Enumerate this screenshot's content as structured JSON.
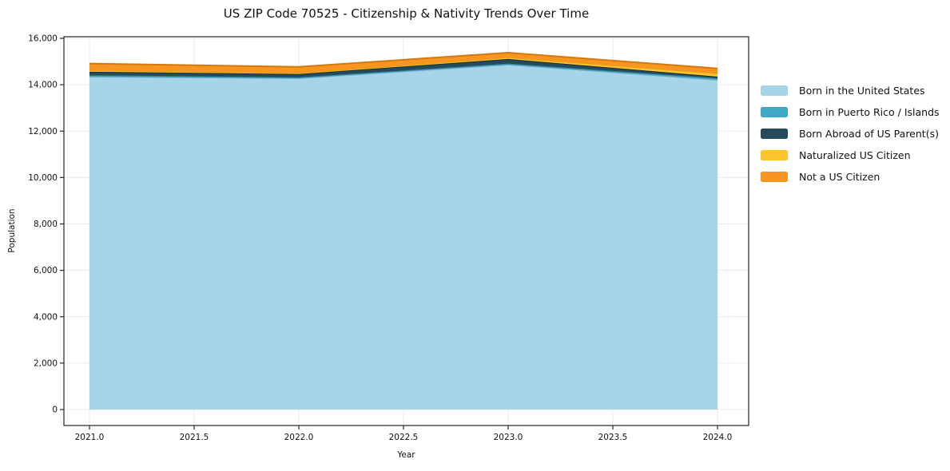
{
  "chart_data": {
    "type": "area",
    "stacked": true,
    "title": "US ZIP Code 70525 - Citizenship & Nativity Trends Over Time",
    "xlabel": "Year",
    "ylabel": "Population",
    "x": [
      2021,
      2022,
      2023,
      2024
    ],
    "series": [
      {
        "name": "Born in the United States",
        "color": "#A6D4E8",
        "edge": "#74AFCC",
        "values": [
          14350,
          14280,
          14870,
          14210
        ]
      },
      {
        "name": "Born in Puerto Rico / Islands",
        "color": "#3FA8C4",
        "edge": "#2C87A0",
        "values": [
          60,
          40,
          40,
          70
        ]
      },
      {
        "name": "Born Abroad of US Parent(s)",
        "color": "#27495C",
        "edge": "#16303F",
        "values": [
          150,
          140,
          200,
          70
        ]
      },
      {
        "name": "Naturalized US Citizen",
        "color": "#FDC32B",
        "edge": "#E0A414",
        "values": [
          70,
          40,
          70,
          140
        ]
      },
      {
        "name": "Not a US Citizen",
        "color": "#F89420",
        "edge": "#D2790F",
        "values": [
          280,
          270,
          200,
          210
        ]
      }
    ],
    "totals": [
      14910,
      14770,
      15380,
      14700
    ],
    "xticks": [
      2021.0,
      2021.5,
      2022.0,
      2022.5,
      2023.0,
      2023.5,
      2024.0
    ],
    "yticks": [
      0,
      2000,
      4000,
      6000,
      8000,
      10000,
      12000,
      14000,
      16000
    ],
    "xlim": [
      2020.85,
      2024.15
    ],
    "ylim": [
      -700,
      16070
    ],
    "grid": true,
    "legend_position": "right",
    "grid_color": "#EAEAEA",
    "frame_color": "#262626",
    "text_color": "#111111"
  }
}
